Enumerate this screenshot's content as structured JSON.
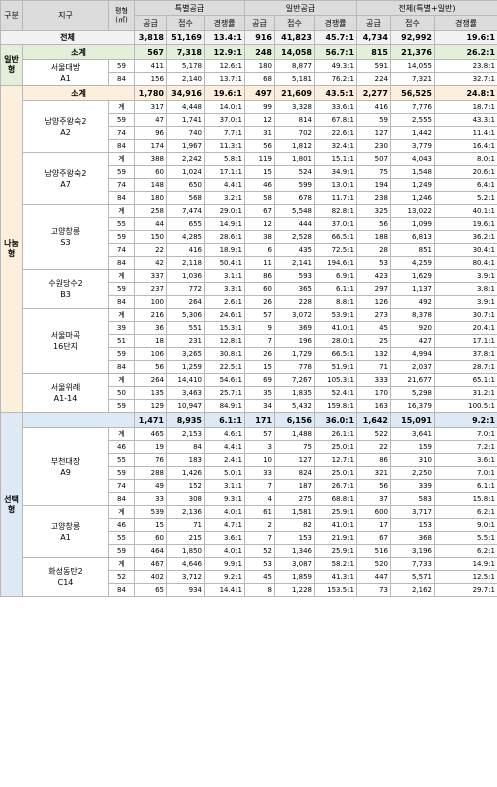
{
  "headers": {
    "gubun": "구분",
    "district": "지구",
    "area": "평형\n(㎡)",
    "special": "특별공급",
    "general": "일반공급",
    "overall": "전체(특별+일반)",
    "supply": "공급",
    "applications": "접수",
    "ratio": "경쟁률"
  },
  "total": {
    "label": "전체",
    "vals": [
      "3,818",
      "51,169",
      "13.4:1",
      "916",
      "41,823",
      "45.7:1",
      "4,734",
      "92,992",
      "19.6:1"
    ]
  },
  "categories": [
    {
      "name": "일반형",
      "subtotal": {
        "label": "소계",
        "vals": [
          "567",
          "7,318",
          "12.9:1",
          "248",
          "14,058",
          "56.7:1",
          "815",
          "21,376",
          "26.2:1"
        ]
      },
      "sites": [
        {
          "name": "서울대방\nA1",
          "rows": [
            {
              "area": "59",
              "vals": [
                "411",
                "5,178",
                "12.6:1",
                "180",
                "8,877",
                "49.3:1",
                "591",
                "14,055",
                "23.8:1"
              ]
            },
            {
              "area": "84",
              "vals": [
                "156",
                "2,140",
                "13.7:1",
                "68",
                "5,181",
                "76.2:1",
                "224",
                "7,321",
                "32.7:1"
              ]
            }
          ]
        }
      ]
    },
    {
      "name": "나눔형",
      "subtotal": {
        "label": "소계",
        "vals": [
          "1,780",
          "34,916",
          "19.6:1",
          "497",
          "21,609",
          "43.5:1",
          "2,277",
          "56,525",
          "24.8:1"
        ]
      },
      "sites": [
        {
          "name": "남양주왕숙2\nA2",
          "rows": [
            {
              "area": "계",
              "vals": [
                "317",
                "4,448",
                "14.0:1",
                "99",
                "3,328",
                "33.6:1",
                "416",
                "7,776",
                "18.7:1"
              ]
            },
            {
              "area": "59",
              "vals": [
                "47",
                "1,741",
                "37.0:1",
                "12",
                "814",
                "67.8:1",
                "59",
                "2,555",
                "43.3:1"
              ]
            },
            {
              "area": "74",
              "vals": [
                "96",
                "740",
                "7.7:1",
                "31",
                "702",
                "22.6:1",
                "127",
                "1,442",
                "11.4:1"
              ]
            },
            {
              "area": "84",
              "vals": [
                "174",
                "1,967",
                "11.3:1",
                "56",
                "1,812",
                "32.4:1",
                "230",
                "3,779",
                "16.4:1"
              ]
            }
          ]
        },
        {
          "name": "남양주왕숙2\nA7",
          "rows": [
            {
              "area": "계",
              "vals": [
                "388",
                "2,242",
                "5.8:1",
                "119",
                "1,801",
                "15.1:1",
                "507",
                "4,043",
                "8.0:1"
              ]
            },
            {
              "area": "59",
              "vals": [
                "60",
                "1,024",
                "17.1:1",
                "15",
                "524",
                "34.9:1",
                "75",
                "1,548",
                "20.6:1"
              ]
            },
            {
              "area": "74",
              "vals": [
                "148",
                "650",
                "4.4:1",
                "46",
                "599",
                "13.0:1",
                "194",
                "1,249",
                "6.4:1"
              ]
            },
            {
              "area": "84",
              "vals": [
                "180",
                "568",
                "3.2:1",
                "58",
                "678",
                "11.7:1",
                "238",
                "1,246",
                "5.2:1"
              ]
            }
          ]
        },
        {
          "name": "고양창릉\nS3",
          "rows": [
            {
              "area": "계",
              "vals": [
                "258",
                "7,474",
                "29.0:1",
                "67",
                "5,548",
                "82.8:1",
                "325",
                "13,022",
                "40.1:1"
              ]
            },
            {
              "area": "55",
              "vals": [
                "44",
                "655",
                "14.9:1",
                "12",
                "444",
                "37.0:1",
                "56",
                "1,099",
                "19.6:1"
              ]
            },
            {
              "area": "59",
              "vals": [
                "150",
                "4,285",
                "28.6:1",
                "38",
                "2,528",
                "66.5:1",
                "188",
                "6,813",
                "36.2:1"
              ]
            },
            {
              "area": "74",
              "vals": [
                "22",
                "416",
                "18.9:1",
                "6",
                "435",
                "72.5:1",
                "28",
                "851",
                "30.4:1"
              ]
            },
            {
              "area": "84",
              "vals": [
                "42",
                "2,118",
                "50.4:1",
                "11",
                "2,141",
                "194.6:1",
                "53",
                "4,259",
                "80.4:1"
              ]
            }
          ]
        },
        {
          "name": "수원당수2\nB3",
          "rows": [
            {
              "area": "계",
              "vals": [
                "337",
                "1,036",
                "3.1:1",
                "86",
                "593",
                "6.9:1",
                "423",
                "1,629",
                "3.9:1"
              ]
            },
            {
              "area": "59",
              "vals": [
                "237",
                "772",
                "3.3:1",
                "60",
                "365",
                "6.1:1",
                "297",
                "1,137",
                "3.8:1"
              ]
            },
            {
              "area": "84",
              "vals": [
                "100",
                "264",
                "2.6:1",
                "26",
                "228",
                "8.8:1",
                "126",
                "492",
                "3.9:1"
              ]
            }
          ]
        },
        {
          "name": "서울마곡\n16단지",
          "rows": [
            {
              "area": "계",
              "vals": [
                "216",
                "5,306",
                "24.6:1",
                "57",
                "3,072",
                "53.9:1",
                "273",
                "8,378",
                "30.7:1"
              ]
            },
            {
              "area": "39",
              "vals": [
                "36",
                "551",
                "15.3:1",
                "9",
                "369",
                "41.0:1",
                "45",
                "920",
                "20.4:1"
              ]
            },
            {
              "area": "51",
              "vals": [
                "18",
                "231",
                "12.8:1",
                "7",
                "196",
                "28.0:1",
                "25",
                "427",
                "17.1:1"
              ]
            },
            {
              "area": "59",
              "vals": [
                "106",
                "3,265",
                "30.8:1",
                "26",
                "1,729",
                "66.5:1",
                "132",
                "4,994",
                "37.8:1"
              ]
            },
            {
              "area": "84",
              "vals": [
                "56",
                "1,259",
                "22.5:1",
                "15",
                "778",
                "51.9:1",
                "71",
                "2,037",
                "28.7:1"
              ]
            }
          ]
        },
        {
          "name": "서울위례\nA1-14",
          "rows": [
            {
              "area": "계",
              "vals": [
                "264",
                "14,410",
                "54.6:1",
                "69",
                "7,267",
                "105.3:1",
                "333",
                "21,677",
                "65.1:1"
              ]
            },
            {
              "area": "50",
              "vals": [
                "135",
                "3,463",
                "25.7:1",
                "35",
                "1,835",
                "52.4:1",
                "170",
                "5,298",
                "31.2:1"
              ]
            },
            {
              "area": "59",
              "vals": [
                "129",
                "10,947",
                "84.9:1",
                "34",
                "5,432",
                "159.8:1",
                "163",
                "16,379",
                "100.5:1"
              ]
            }
          ]
        }
      ]
    },
    {
      "name": "선택형",
      "subtotal": {
        "label": "",
        "vals": [
          "1,471",
          "8,935",
          "6.1:1",
          "171",
          "6,156",
          "36.0:1",
          "1,642",
          "15,091",
          "9.2:1"
        ]
      },
      "sites": [
        {
          "name": "부천대장\nA9",
          "rows": [
            {
              "area": "계",
              "vals": [
                "465",
                "2,153",
                "4.6:1",
                "57",
                "1,488",
                "26.1:1",
                "522",
                "3,641",
                "7.0:1"
              ]
            },
            {
              "area": "46",
              "vals": [
                "19",
                "84",
                "4.4:1",
                "3",
                "75",
                "25.0:1",
                "22",
                "159",
                "7.2:1"
              ]
            },
            {
              "area": "55",
              "vals": [
                "76",
                "183",
                "2.4:1",
                "10",
                "127",
                "12.7:1",
                "86",
                "310",
                "3.6:1"
              ]
            },
            {
              "area": "59",
              "vals": [
                "288",
                "1,426",
                "5.0:1",
                "33",
                "824",
                "25.0:1",
                "321",
                "2,250",
                "7.0:1"
              ]
            },
            {
              "area": "74",
              "vals": [
                "49",
                "152",
                "3.1:1",
                "7",
                "187",
                "26.7:1",
                "56",
                "339",
                "6.1:1"
              ]
            },
            {
              "area": "84",
              "vals": [
                "33",
                "308",
                "9.3:1",
                "4",
                "275",
                "68.8:1",
                "37",
                "583",
                "15.8:1"
              ]
            }
          ]
        },
        {
          "name": "고양창릉\nA1",
          "rows": [
            {
              "area": "계",
              "vals": [
                "539",
                "2,136",
                "4.0:1",
                "61",
                "1,581",
                "25.9:1",
                "600",
                "3,717",
                "6.2:1"
              ]
            },
            {
              "area": "46",
              "vals": [
                "15",
                "71",
                "4.7:1",
                "2",
                "82",
                "41.0:1",
                "17",
                "153",
                "9.0:1"
              ]
            },
            {
              "area": "55",
              "vals": [
                "60",
                "215",
                "3.6:1",
                "7",
                "153",
                "21.9:1",
                "67",
                "368",
                "5.5:1"
              ]
            },
            {
              "area": "59",
              "vals": [
                "464",
                "1,850",
                "4.0:1",
                "52",
                "1,346",
                "25.9:1",
                "516",
                "3,196",
                "6.2:1"
              ]
            }
          ]
        },
        {
          "name": "화성동탄2\nC14",
          "rows": [
            {
              "area": "계",
              "vals": [
                "467",
                "4,646",
                "9.9:1",
                "53",
                "3,087",
                "58.2:1",
                "520",
                "7,733",
                "14.9:1"
              ]
            },
            {
              "area": "52",
              "vals": [
                "402",
                "3,712",
                "9.2:1",
                "45",
                "1,859",
                "41.3:1",
                "447",
                "5,571",
                "12.5:1"
              ]
            },
            {
              "area": "84",
              "vals": [
                "65",
                "934",
                "14.4:1",
                "8",
                "1,228",
                "153.5:1",
                "73",
                "2,162",
                "29.7:1"
              ]
            }
          ]
        }
      ]
    }
  ]
}
